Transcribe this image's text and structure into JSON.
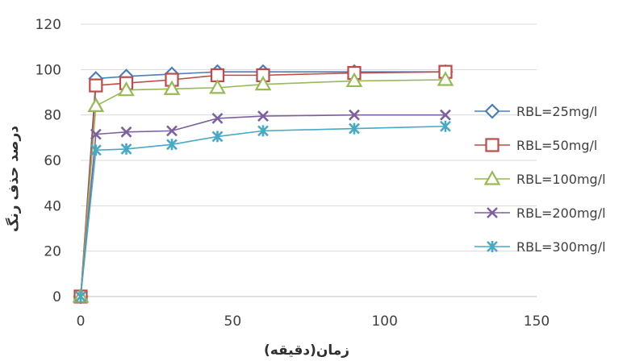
{
  "chart_data": {
    "type": "line",
    "xlabel": "زمان(دقیقه)",
    "ylabel": "درصد حذف رنگ",
    "xlim": [
      0,
      150
    ],
    "ylim": [
      0,
      120
    ],
    "x_ticks": [
      "0",
      "50",
      "100",
      "150"
    ],
    "y_ticks": [
      "0",
      "20",
      "40",
      "60",
      "80",
      "100",
      "120"
    ],
    "grid": "horizontal",
    "legend_position": "right",
    "x": [
      0,
      5,
      15,
      30,
      45,
      60,
      90,
      120
    ],
    "series": [
      {
        "name": "RBL=25mg/l",
        "marker": "diamond",
        "color": "#4a7ebb",
        "values": [
          0,
          96,
          97,
          98,
          99,
          99,
          99,
          99
        ]
      },
      {
        "name": "RBL=50mg/l",
        "marker": "square",
        "color": "#be4b48",
        "values": [
          0,
          93,
          94,
          95.5,
          97.5,
          97.5,
          98.5,
          99
        ]
      },
      {
        "name": "RBL=100mg/l",
        "marker": "triangle",
        "color": "#98b954",
        "values": [
          0,
          84,
          91,
          91.5,
          92,
          93.5,
          95,
          95.5
        ]
      },
      {
        "name": "RBL=200mg/l",
        "marker": "x",
        "color": "#7d60a0",
        "values": [
          0,
          71.5,
          72.5,
          73,
          78.5,
          79.5,
          80,
          80
        ]
      },
      {
        "name": "RBL=300mg/l",
        "marker": "asterisk",
        "color": "#46aac5",
        "values": [
          0,
          64.5,
          65,
          67,
          70.5,
          73,
          74,
          75
        ]
      }
    ]
  }
}
